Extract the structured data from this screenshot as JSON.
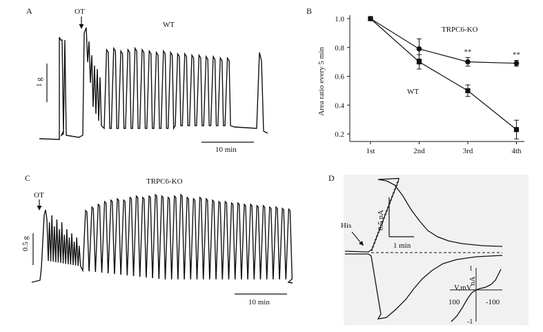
{
  "panel_a": {
    "letter": "A",
    "stim": "OT",
    "genotype": "WT",
    "scale_y": "1 g",
    "scale_x": "10 min"
  },
  "panel_c": {
    "letter": "C",
    "stim": "OT",
    "genotype": "TRPC6-KO",
    "scale_y": "0.5 g",
    "scale_x": "10 min"
  },
  "panel_d": {
    "letter": "D",
    "stim": "His",
    "scale_y": "0.5 nA",
    "scale_x": "1 min",
    "iv_axis_y": "nA",
    "iv_axis_x": "V,mV",
    "iv_top": "1",
    "iv_bottom": "-1",
    "iv_left": "100",
    "iv_right": "-100"
  },
  "chart_data": {
    "letter": "B",
    "type": "line",
    "categories": [
      "1st",
      "2nd",
      "3rd",
      "4th"
    ],
    "ylabel": "Area ratio every 5 min",
    "ylim": [
      0.2,
      1.0
    ],
    "yticks": [
      "0.2",
      "0.4",
      "0.6",
      "0.8",
      "1.0"
    ],
    "series": [
      {
        "name": "TRPC6-KO",
        "marker": "circle",
        "values": [
          1.0,
          0.79,
          0.7,
          0.69
        ],
        "err": [
          0.0,
          0.07,
          0.03,
          0.02
        ]
      },
      {
        "name": "WT",
        "marker": "square",
        "values": [
          1.0,
          0.7,
          0.5,
          0.23
        ],
        "err": [
          0.0,
          0.05,
          0.04,
          0.065
        ]
      }
    ],
    "annotations": [
      {
        "category": "3rd",
        "text": "**"
      },
      {
        "category": "4th",
        "text": "**"
      }
    ]
  }
}
